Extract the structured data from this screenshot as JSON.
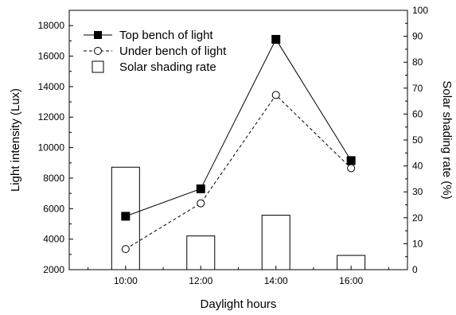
{
  "chart_data": {
    "type": "line",
    "categories": [
      "10:00",
      "12:00",
      "14:00",
      "16:00"
    ],
    "xlabel": "Daylight hours",
    "ylabel": "Light intensity (Lux)",
    "y2label": "Solar shading rate (%)",
    "ylim": [
      2000,
      19000
    ],
    "y2lim": [
      0,
      100
    ],
    "yticks": [
      2000,
      4000,
      6000,
      8000,
      10000,
      12000,
      14000,
      16000,
      18000
    ],
    "y2ticks": [
      0,
      10,
      20,
      30,
      40,
      50,
      60,
      70,
      80,
      90,
      100
    ],
    "series": [
      {
        "name": "Top bench of light",
        "type": "line",
        "axis": "left",
        "marker": "filled-square",
        "line": "solid",
        "color": "#000000",
        "values": [
          5500,
          7300,
          17100,
          9150
        ]
      },
      {
        "name": "Under bench of light",
        "type": "line",
        "axis": "left",
        "marker": "open-circle",
        "line": "dashed",
        "color": "#000000",
        "values": [
          3350,
          6350,
          13450,
          8650
        ]
      },
      {
        "name": "Solar shading rate",
        "type": "bar",
        "axis": "right",
        "color": "#ffffff",
        "values": [
          39.5,
          13,
          21,
          5.5
        ]
      }
    ],
    "legend_position": "top-left",
    "grid": false
  }
}
